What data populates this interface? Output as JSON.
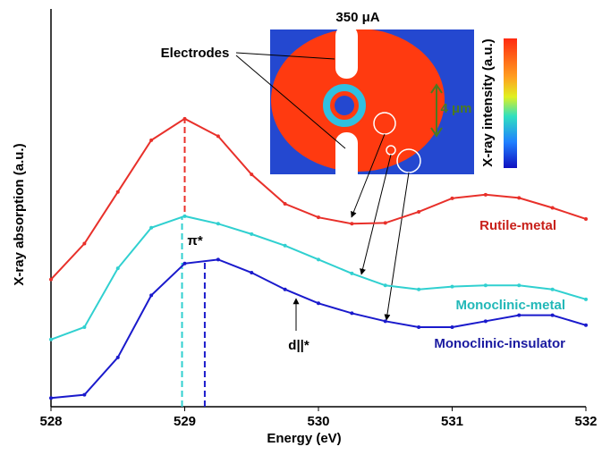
{
  "chart_data": {
    "type": "line",
    "xlabel": "Energy (eV)",
    "ylabel": "X-ray absorption (a.u.)",
    "x": [
      528,
      528.25,
      528.5,
      528.75,
      529,
      529.25,
      529.5,
      529.75,
      530,
      530.25,
      530.5,
      530.75,
      531,
      531.25,
      531.5,
      531.75,
      532
    ],
    "series": [
      {
        "name": "Rutile-metal",
        "color": "#e8302a",
        "label_color": "#c8201a",
        "values": [
          3.2,
          4.1,
          5.4,
          6.7,
          7.24,
          6.8,
          5.84,
          5.1,
          4.76,
          4.6,
          4.62,
          4.9,
          5.24,
          5.33,
          5.25,
          5.0,
          4.72
        ]
      },
      {
        "name": "Monoclinic-metal",
        "color": "#30d0d0",
        "label_color": "#22b8b8",
        "values": [
          1.69,
          2.0,
          3.48,
          4.5,
          4.79,
          4.6,
          4.34,
          4.05,
          3.7,
          3.35,
          3.05,
          2.95,
          3.02,
          3.05,
          3.05,
          2.95,
          2.7
        ]
      },
      {
        "name": "Monoclinic-insulator",
        "color": "#1a1acc",
        "label_color": "#1a1aa0",
        "values": [
          0.22,
          0.3,
          1.24,
          2.8,
          3.6,
          3.7,
          3.37,
          2.95,
          2.6,
          2.35,
          2.15,
          2.0,
          2.0,
          2.15,
          2.3,
          2.3,
          2.05
        ]
      }
    ],
    "markers": [
      {
        "x": 529.0,
        "ylim": [
          4.9,
          7.24
        ],
        "series": 0
      },
      {
        "x": 528.98,
        "ylim": [
          0,
          4.79
        ],
        "series": 1
      },
      {
        "x": 529.15,
        "ylim": [
          0,
          3.7
        ],
        "series": 2
      }
    ],
    "xlim": [
      528,
      532
    ],
    "xticks": [
      528,
      529,
      530,
      531,
      532
    ],
    "ylim": [
      0,
      10
    ],
    "annotations": {
      "pi_star": "π*",
      "d_par": "d||*",
      "current": "350 μA",
      "electrodes": "Electrodes",
      "scale": "4 μm",
      "colorbar": "X-ray intensity (a.u.)"
    }
  }
}
